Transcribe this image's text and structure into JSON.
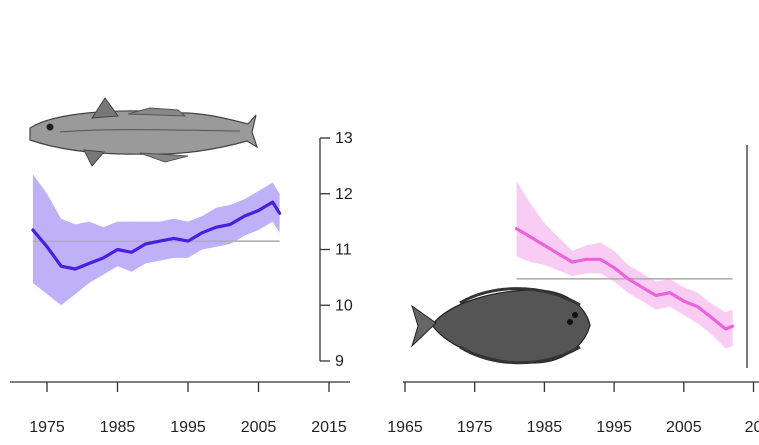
{
  "chart_data": [
    {
      "type": "line",
      "title": "",
      "xlabel": "",
      "ylabel": "",
      "x_ticks": [
        "1975",
        "1985",
        "1995",
        "2005",
        "2015"
      ],
      "y_ticks": [
        "9",
        "10",
        "11",
        "12",
        "13"
      ],
      "xlim": [
        1965,
        2015
      ],
      "ylim": [
        9,
        13
      ],
      "y_axis_side": "right",
      "reference_line": 11.15,
      "series": [
        {
          "color": "#4a1ee0",
          "band_color": "#b3a3f7",
          "x": [
            1973,
            1975,
            1977,
            1979,
            1981,
            1983,
            1985,
            1987,
            1989,
            1991,
            1993,
            1995,
            1997,
            1999,
            2001,
            2003,
            2005,
            2007,
            2008
          ],
          "y": [
            11.35,
            11.05,
            10.7,
            10.65,
            10.75,
            10.85,
            11.0,
            10.95,
            11.1,
            11.15,
            11.2,
            11.15,
            11.3,
            11.4,
            11.45,
            11.6,
            11.7,
            11.85,
            11.65
          ],
          "lower": [
            10.4,
            10.2,
            10.0,
            10.2,
            10.4,
            10.55,
            10.7,
            10.6,
            10.75,
            10.8,
            10.85,
            10.85,
            11.0,
            11.05,
            11.1,
            11.25,
            11.35,
            11.5,
            11.3
          ],
          "upper": [
            12.35,
            12.0,
            11.55,
            11.45,
            11.5,
            11.4,
            11.5,
            11.5,
            11.5,
            11.5,
            11.55,
            11.5,
            11.6,
            11.75,
            11.8,
            11.9,
            12.05,
            12.2,
            12.0
          ]
        }
      ],
      "icon": "whiting-fish-icon"
    },
    {
      "type": "line",
      "title": "",
      "xlabel": "",
      "ylabel": "",
      "x_ticks": [
        "1965",
        "1975",
        "1985",
        "1995",
        "2005",
        "20"
      ],
      "y_ticks": [],
      "xlim": [
        1965,
        2015
      ],
      "ylim": [
        9,
        13
      ],
      "y_axis_side": "right",
      "reference_line": 10.6,
      "series": [
        {
          "color": "#ea63dc",
          "band_color": "#f8c4f1",
          "x": [
            1981,
            1983,
            1985,
            1987,
            1989,
            1991,
            1993,
            1995,
            1997,
            1999,
            2001,
            2003,
            2005,
            2007,
            2009,
            2011,
            2012
          ],
          "y": [
            11.5,
            11.35,
            11.2,
            11.05,
            10.9,
            10.95,
            10.95,
            10.8,
            10.6,
            10.45,
            10.3,
            10.35,
            10.2,
            10.1,
            9.9,
            9.7,
            9.75
          ],
          "lower": [
            11.0,
            10.9,
            10.85,
            10.75,
            10.65,
            10.7,
            10.7,
            10.55,
            10.35,
            10.2,
            10.05,
            10.1,
            9.95,
            9.8,
            9.6,
            9.35,
            9.4
          ],
          "upper": [
            12.35,
            11.95,
            11.6,
            11.35,
            11.1,
            11.2,
            11.25,
            11.1,
            10.85,
            10.7,
            10.55,
            10.6,
            10.45,
            10.35,
            10.15,
            10.0,
            10.05
          ]
        }
      ],
      "icon": "flatfish-icon"
    }
  ]
}
